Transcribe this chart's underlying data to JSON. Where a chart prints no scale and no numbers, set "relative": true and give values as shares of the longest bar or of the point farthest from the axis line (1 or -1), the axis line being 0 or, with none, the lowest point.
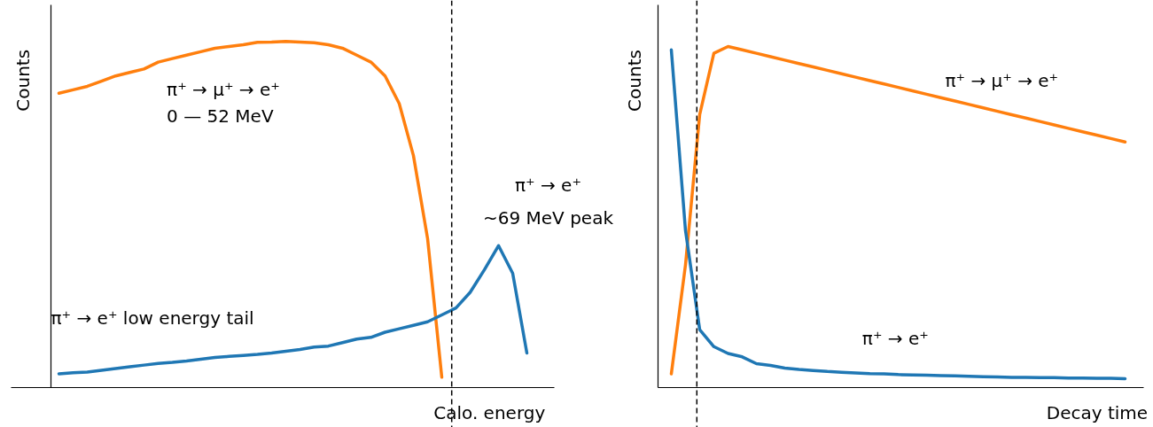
{
  "chart_data": [
    {
      "type": "line",
      "relative": true,
      "tick_labels": false,
      "xlabel": "Calo. energy",
      "ylabel": "Counts",
      "categories": [
        null,
        null,
        null,
        null,
        null,
        null,
        null,
        null,
        null,
        null,
        null,
        null,
        null,
        null,
        null,
        null,
        null,
        null,
        null,
        null,
        null,
        null,
        null,
        null,
        null,
        null,
        null,
        null,
        null,
        null,
        null,
        null,
        null,
        null,
        null
      ],
      "series": [
        {
          "color": "#ff7f0e",
          "values": [
            0.85,
            0.86,
            0.87,
            0.885,
            0.9,
            0.91,
            0.92,
            0.94,
            0.95,
            0.96,
            0.97,
            0.98,
            0.985,
            0.99,
            0.997,
            0.998,
            1.0,
            0.998,
            0.996,
            0.99,
            0.98,
            0.96,
            0.94,
            0.9,
            0.82,
            0.67,
            0.43,
            0.03,
            null,
            null,
            null,
            null,
            null,
            null,
            null
          ]
        },
        {
          "color": "#1f77b4",
          "values": [
            0.04,
            0.043,
            0.045,
            0.05,
            0.055,
            0.06,
            0.065,
            0.07,
            0.073,
            0.077,
            0.082,
            0.087,
            0.09,
            0.093,
            0.096,
            0.1,
            0.105,
            0.11,
            0.117,
            0.12,
            0.13,
            0.14,
            0.145,
            0.16,
            0.17,
            0.18,
            0.19,
            0.21,
            0.23,
            0.275,
            0.34,
            0.41,
            0.33,
            0.1,
            null
          ]
        }
      ],
      "annotations": [
        "π⁺ → μ⁺ → e⁺",
        "0 — 52 MeV",
        "π⁺ → e⁺",
        "~69 MeV peak",
        "π⁺ → e⁺ low energy tail"
      ]
    },
    {
      "type": "line",
      "relative": true,
      "tick_labels": false,
      "xlabel": "Decay time",
      "ylabel": "Counts",
      "categories": [
        null,
        null,
        null,
        null,
        null,
        null,
        null,
        null,
        null,
        null,
        null,
        null,
        null,
        null,
        null,
        null,
        null,
        null,
        null,
        null,
        null,
        null,
        null,
        null,
        null,
        null,
        null,
        null,
        null,
        null,
        null,
        null,
        null
      ],
      "series": [
        {
          "color": "#ff7f0e",
          "values": [
            0.04,
            0.36,
            0.8,
            0.98,
            1.0,
            0.99,
            0.98,
            0.97,
            0.96,
            0.95,
            0.94,
            0.93,
            0.92,
            0.91,
            0.9,
            0.89,
            0.88,
            0.87,
            0.86,
            0.85,
            0.84,
            0.83,
            0.82,
            0.81,
            0.8,
            0.79,
            0.78,
            0.77,
            0.76,
            0.75,
            0.74,
            0.73,
            0.72
          ]
        },
        {
          "color": "#1f77b4",
          "values": [
            0.99,
            0.46,
            0.17,
            0.12,
            0.1,
            0.09,
            0.07,
            0.065,
            0.057,
            0.053,
            0.05,
            0.047,
            0.045,
            0.043,
            0.041,
            0.04,
            0.038,
            0.037,
            0.036,
            0.035,
            0.034,
            0.033,
            0.032,
            0.031,
            0.03,
            0.03,
            0.029,
            0.029,
            0.028,
            0.028,
            0.027,
            0.027,
            0.026
          ]
        }
      ],
      "annotations": [
        "π⁺ → μ⁺ → e⁺",
        "π⁺ → e⁺"
      ]
    }
  ]
}
